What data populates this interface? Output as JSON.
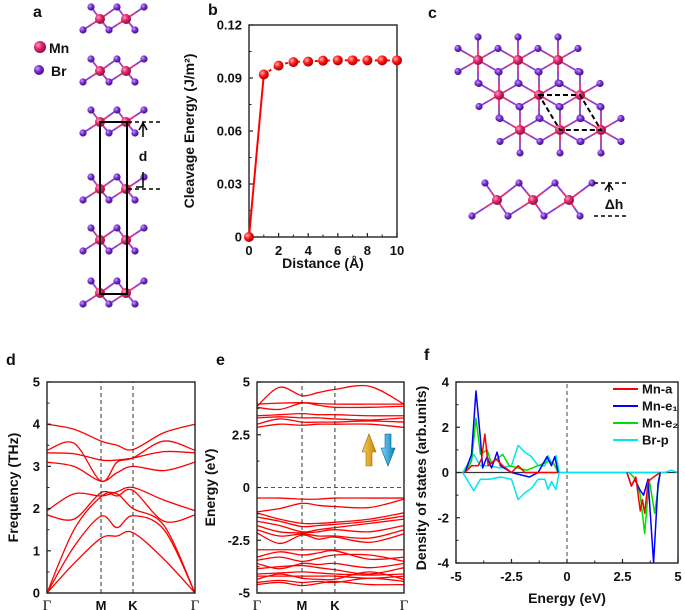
{
  "panel_labels": {
    "a": "a",
    "b": "b",
    "c": "c",
    "d": "d",
    "e": "e",
    "f": "f"
  },
  "colors": {
    "mn": "#e0266e",
    "br": "#7a2fd2",
    "curve": "#ff0000",
    "spin_up_arrow": "#e8a21a",
    "spin_down_arrow": "#1aa0d8"
  },
  "structure_a": {
    "legend": [
      {
        "label": "Mn",
        "atom": "Mn"
      },
      {
        "label": "Br",
        "atom": "Br"
      }
    ],
    "interlayer_label": "d"
  },
  "structure_c": {
    "height_label": "Δh"
  },
  "chart_data": [
    {
      "panel": "b",
      "type": "line",
      "xlabel": "Distance (Å)",
      "ylabel": "Cleavage Energy (J/m²)",
      "xlim": [
        0,
        10
      ],
      "ylim": [
        0,
        0.12
      ],
      "xticks": [
        "0",
        "2",
        "4",
        "6",
        "8",
        "10"
      ],
      "yticks": [
        "0",
        "0.03",
        "0.06",
        "0.09",
        "0.12"
      ],
      "x": [
        0,
        1,
        2,
        3,
        4,
        5,
        6,
        7,
        8,
        9,
        10
      ],
      "y": [
        0,
        0.092,
        0.097,
        0.099,
        0.0993,
        0.0998,
        0.1,
        0.1,
        0.1,
        0.1,
        0.1
      ],
      "color": "#ff0000"
    },
    {
      "panel": "d",
      "type": "line",
      "ylabel": "Frequency (THz)",
      "ylim": [
        0,
        5
      ],
      "yticks": [
        "0",
        "1",
        "2",
        "3",
        "4",
        "5"
      ],
      "kpath": [
        "Γ",
        "M",
        "K",
        "Γ"
      ],
      "bands": [
        [
          0,
          0.7,
          1.3,
          1.35,
          1.43,
          0.8,
          0
        ],
        [
          0,
          1.1,
          1.82,
          1.55,
          1.83,
          1.5,
          0
        ],
        [
          0,
          1.5,
          2.28,
          2.35,
          2.0,
          1.6,
          0
        ],
        [
          1.85,
          1.75,
          2.38,
          2.3,
          2.43,
          1.7,
          1.85
        ],
        [
          1.95,
          2.35,
          2.3,
          2.4,
          2.5,
          2.2,
          1.95
        ],
        [
          3.1,
          3.0,
          2.65,
          2.85,
          3.0,
          2.9,
          3.1
        ],
        [
          3.32,
          3.3,
          3.15,
          3.15,
          3.2,
          3.35,
          3.32
        ],
        [
          3.38,
          3.55,
          2.65,
          3.1,
          3.2,
          3.6,
          3.38
        ],
        [
          4.0,
          3.88,
          3.6,
          3.5,
          3.4,
          3.8,
          4.0
        ]
      ]
    },
    {
      "panel": "e",
      "type": "line",
      "ylabel": "Energy (eV)",
      "ylim": [
        -5,
        5
      ],
      "yticks": [
        "-5",
        "-2.5",
        "0",
        "2.5",
        "5"
      ],
      "kpath": [
        "Γ",
        "M",
        "K",
        "Γ"
      ],
      "bands": [
        [
          3.85,
          4.75,
          4.35,
          4.5,
          4.65,
          4.8,
          3.95
        ],
        [
          3.95,
          4.0,
          4.02,
          3.98,
          3.95,
          3.95,
          3.95
        ],
        [
          3.8,
          3.7,
          4.0,
          3.9,
          3.8,
          3.8,
          3.85
        ],
        [
          3.4,
          3.45,
          3.5,
          3.45,
          3.45,
          3.4,
          3.4
        ],
        [
          3.3,
          3.35,
          3.3,
          3.3,
          3.25,
          3.2,
          3.3
        ],
        [
          3.0,
          3.25,
          3.1,
          3.1,
          3.1,
          3.15,
          3.1
        ],
        [
          2.85,
          3.0,
          2.95,
          3.0,
          3.0,
          3.0,
          2.85
        ],
        [
          -0.5,
          -0.5,
          -0.55,
          -0.55,
          -0.5,
          -0.5,
          -0.5
        ],
        [
          -1.15,
          -1.0,
          -0.75,
          -0.85,
          -0.9,
          -0.95,
          -0.55
        ],
        [
          -1.2,
          -1.5,
          -1.7,
          -1.7,
          -1.65,
          -1.5,
          -1.2
        ],
        [
          -1.4,
          -1.6,
          -1.85,
          -1.8,
          -1.75,
          -1.6,
          -1.35
        ],
        [
          -1.6,
          -1.8,
          -2.1,
          -2.0,
          -1.9,
          -1.7,
          -1.5
        ],
        [
          -1.8,
          -2.1,
          -2.15,
          -2.1,
          -2.0,
          -2.1,
          -1.8
        ],
        [
          -2.0,
          -2.3,
          -2.2,
          -2.3,
          -2.3,
          -2.4,
          -2.0
        ],
        [
          -2.15,
          -2.65,
          -2.25,
          -2.45,
          -2.35,
          -2.6,
          -2.2
        ],
        [
          -2.95,
          -2.95,
          -2.95,
          -2.95,
          -2.95,
          -2.95,
          -2.95
        ],
        [
          -3.3,
          -3.05,
          -3.2,
          -3.1,
          -3.0,
          -3.4,
          -3.3
        ],
        [
          -3.45,
          -3.3,
          -3.5,
          -3.35,
          -3.2,
          -3.2,
          -3.5
        ],
        [
          -3.6,
          -3.85,
          -3.6,
          -3.65,
          -3.6,
          -3.8,
          -3.6
        ],
        [
          -3.85,
          -3.75,
          -3.7,
          -3.8,
          -3.9,
          -4.1,
          -3.8
        ],
        [
          -4.1,
          -4.05,
          -4.0,
          -4.05,
          -4.1,
          -4.15,
          -4.1
        ],
        [
          -4.2,
          -4.2,
          -4.2,
          -4.2,
          -4.2,
          -4.3,
          -4.2
        ],
        [
          -4.35,
          -4.1,
          -4.3,
          -4.35,
          -4.35,
          -4.0,
          -4.35
        ],
        [
          -4.5,
          -4.4,
          -4.5,
          -4.45,
          -4.5,
          -4.3,
          -4.45
        ],
        [
          -4.6,
          -4.5,
          -4.65,
          -4.55,
          -4.45,
          -4.6,
          -4.6
        ]
      ]
    },
    {
      "panel": "f",
      "type": "line",
      "xlabel": "Energy (eV)",
      "ylabel": "Density of states (arb.units)",
      "xlim": [
        -5,
        5
      ],
      "ylim": [
        -4,
        4
      ],
      "y_inverted": true,
      "xticks": [
        "-5",
        "-2.5",
        "0",
        "2.5",
        "5"
      ],
      "yticks": [
        "-4",
        "-2",
        "0",
        "2",
        "4"
      ],
      "legend_position": "top-right",
      "series": [
        {
          "name": "Mn-a",
          "color": "#ff0000",
          "up": [
            [
              -4.6,
              0
            ],
            [
              -4.3,
              -0.3
            ],
            [
              -4.0,
              -0.3
            ],
            [
              -3.85,
              -0.6
            ],
            [
              -3.7,
              -1.7
            ],
            [
              -3.55,
              -0.3
            ],
            [
              -3.2,
              -0.6
            ],
            [
              -2.9,
              -0.3
            ],
            [
              -2.5,
              0
            ],
            [
              -2.2,
              -0.3
            ],
            [
              -1.9,
              0
            ],
            [
              -0.4,
              0
            ]
          ],
          "down": [
            [
              2.7,
              0
            ],
            [
              2.9,
              0.6
            ],
            [
              3.1,
              0.2
            ],
            [
              3.3,
              1.7
            ],
            [
              3.4,
              1.2
            ],
            [
              3.5,
              1.8
            ],
            [
              3.65,
              0.4
            ],
            [
              3.9,
              0.2
            ],
            [
              4.2,
              0
            ]
          ]
        },
        {
          "name": "Mn-e₁",
          "color": "#0000ff",
          "up": [
            [
              -4.6,
              0
            ],
            [
              -4.3,
              -0.8
            ],
            [
              -4.1,
              -3.6
            ],
            [
              -3.9,
              -1.5
            ],
            [
              -3.8,
              -0.2
            ],
            [
              -3.6,
              -0.7
            ],
            [
              -3.4,
              -0.2
            ],
            [
              -3.15,
              -0.9
            ],
            [
              -3.0,
              -0.3
            ],
            [
              -2.5,
              0
            ],
            [
              -1.7,
              0.2
            ],
            [
              -1.3,
              0
            ],
            [
              -0.9,
              -0.7
            ],
            [
              -0.7,
              -0.3
            ],
            [
              -0.55,
              -0.7
            ],
            [
              -0.4,
              0
            ]
          ],
          "down": [
            [
              2.7,
              0
            ],
            [
              2.9,
              0.6
            ],
            [
              3.05,
              0.3
            ],
            [
              3.3,
              0.8
            ],
            [
              3.45,
              1.0
            ],
            [
              3.65,
              0.3
            ],
            [
              3.9,
              4.0
            ],
            [
              4.1,
              0.5
            ],
            [
              4.2,
              0
            ]
          ]
        },
        {
          "name": "Mn-e₂",
          "color": "#00dd00",
          "up": [
            [
              -4.6,
              0
            ],
            [
              -4.3,
              -0.5
            ],
            [
              -4.1,
              -2.4
            ],
            [
              -3.9,
              -0.8
            ],
            [
              -3.6,
              -1.0
            ],
            [
              -3.4,
              -0.4
            ],
            [
              -2.9,
              -0.8
            ],
            [
              -2.6,
              -0.3
            ],
            [
              -1.8,
              -0.1
            ],
            [
              -0.8,
              -0.5
            ],
            [
              -0.6,
              -0.4
            ],
            [
              -0.4,
              0
            ]
          ],
          "down": [
            [
              2.8,
              0
            ],
            [
              3.1,
              0.3
            ],
            [
              3.3,
              1.0
            ],
            [
              3.5,
              2.7
            ],
            [
              3.7,
              0.3
            ],
            [
              3.95,
              1.8
            ],
            [
              4.2,
              0
            ]
          ]
        },
        {
          "name": "Br-p",
          "color": "#00e5ee",
          "up": [
            [
              -4.7,
              0
            ],
            [
              -4.2,
              -0.8
            ],
            [
              -3.9,
              -0.3
            ],
            [
              -3.5,
              -0.3
            ],
            [
              -3.0,
              -0.2
            ],
            [
              -2.5,
              -0.3
            ],
            [
              -2.2,
              -1.2
            ],
            [
              -1.9,
              -0.9
            ],
            [
              -1.6,
              -0.7
            ],
            [
              -1.3,
              -0.3
            ],
            [
              -1.0,
              -0.3
            ],
            [
              -0.85,
              -0.75
            ],
            [
              -0.7,
              -0.4
            ],
            [
              -0.5,
              -0.75
            ],
            [
              -0.35,
              0
            ],
            [
              4.4,
              0
            ],
            [
              4.7,
              -0.1
            ],
            [
              5,
              0
            ]
          ],
          "down": [
            [
              -4.7,
              0
            ],
            [
              -4.2,
              0.8
            ],
            [
              -3.9,
              0.3
            ],
            [
              -3.5,
              0.3
            ],
            [
              -3.0,
              0.2
            ],
            [
              -2.5,
              0.3
            ],
            [
              -2.2,
              1.2
            ],
            [
              -1.9,
              0.9
            ],
            [
              -1.6,
              0.7
            ],
            [
              -1.3,
              0.3
            ],
            [
              -1.0,
              0.3
            ],
            [
              -0.85,
              0.75
            ],
            [
              -0.7,
              0.4
            ],
            [
              -0.5,
              0.75
            ],
            [
              -0.35,
              0
            ]
          ]
        }
      ]
    }
  ]
}
